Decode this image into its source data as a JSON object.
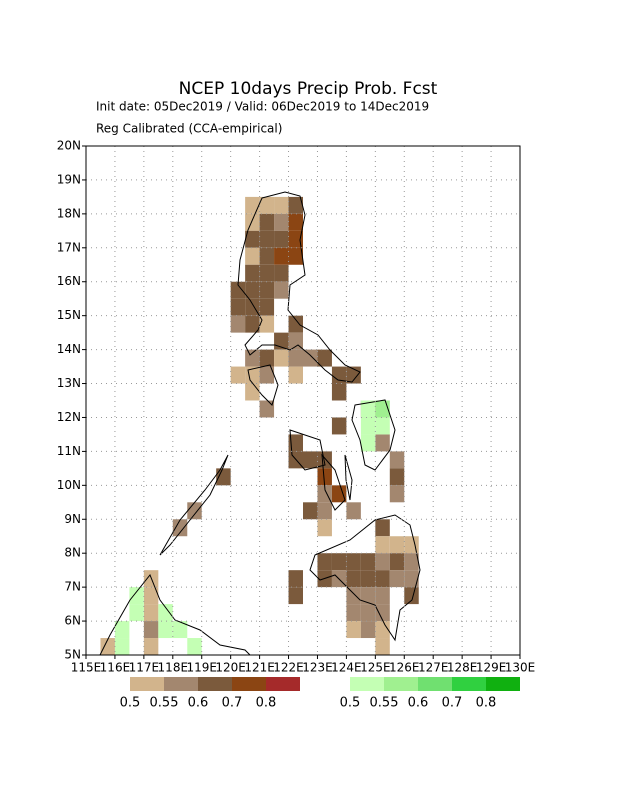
{
  "chart_data": {
    "type": "gridmap",
    "title": "NCEP 10days Precip Prob. Fcst",
    "subtitle": "Init date: 05Dec2019 / Valid: 06Dec2019 to 14Dec2019",
    "note": "Reg Calibrated (CCA-empirical)",
    "xlim": [
      115,
      130
    ],
    "ylim": [
      5,
      20
    ],
    "cell": 0.5,
    "grid": true,
    "xticks": [
      {
        "value": 115,
        "label": "115E"
      },
      {
        "value": 116,
        "label": "116E"
      },
      {
        "value": 117,
        "label": "117E"
      },
      {
        "value": 118,
        "label": "118E"
      },
      {
        "value": 119,
        "label": "119E"
      },
      {
        "value": 120,
        "label": "120E"
      },
      {
        "value": 121,
        "label": "121E"
      },
      {
        "value": 122,
        "label": "122E"
      },
      {
        "value": 123,
        "label": "123E"
      },
      {
        "value": 124,
        "label": "124E"
      },
      {
        "value": 125,
        "label": "125E"
      },
      {
        "value": 126,
        "label": "126E"
      },
      {
        "value": 127,
        "label": "127E"
      },
      {
        "value": 128,
        "label": "128E"
      },
      {
        "value": 129,
        "label": "129E"
      },
      {
        "value": 130,
        "label": "130E"
      }
    ],
    "yticks": [
      {
        "value": 5,
        "label": "5N"
      },
      {
        "value": 6,
        "label": "6N"
      },
      {
        "value": 7,
        "label": "7N"
      },
      {
        "value": 8,
        "label": "8N"
      },
      {
        "value": 9,
        "label": "9N"
      },
      {
        "value": 10,
        "label": "10N"
      },
      {
        "value": 11,
        "label": "11N"
      },
      {
        "value": 12,
        "label": "12N"
      },
      {
        "value": 13,
        "label": "13N"
      },
      {
        "value": 14,
        "label": "14N"
      },
      {
        "value": 15,
        "label": "15N"
      },
      {
        "value": 16,
        "label": "16N"
      },
      {
        "value": 17,
        "label": "17N"
      },
      {
        "value": 18,
        "label": "18N"
      },
      {
        "value": 19,
        "label": "19N"
      },
      {
        "value": 20,
        "label": "20N"
      }
    ],
    "levels": [
      0.5,
      0.55,
      0.6,
      0.7,
      0.8
    ],
    "colors_below": [
      "#d2b48c",
      "#a3876f",
      "#7b5a3c",
      "#8b4513",
      "#a52a2a"
    ],
    "colors_above": [
      "#c4ffb4",
      "#a0f090",
      "#70e070",
      "#30d040",
      "#10b010"
    ],
    "below": {
      "lon": [
        120.5,
        121,
        121.5,
        122,
        120.5,
        121,
        121.5,
        122,
        120.5,
        121,
        121.5,
        122,
        120.5,
        121,
        121.5,
        122,
        120.5,
        121,
        121.5,
        120,
        120.5,
        121,
        121.5,
        120,
        120.5,
        121,
        120,
        120.5,
        121,
        122,
        121.5,
        122,
        120.5,
        121,
        121.5,
        122,
        122.5,
        123,
        120,
        120.5,
        121,
        122,
        123.5,
        124,
        120.5,
        123.5,
        121,
        124.5,
        123.5,
        122,
        125,
        122,
        122.5,
        123,
        125.5,
        123,
        125.5,
        123.5,
        123,
        125.5,
        122.5,
        123,
        124,
        123,
        125,
        125,
        125.5,
        126,
        123,
        123.5,
        124,
        124.5,
        125,
        125.5,
        126,
        122,
        123,
        123.5,
        124,
        124.5,
        125,
        125.5,
        126,
        122,
        124,
        124.5,
        125,
        126,
        124,
        124.5,
        125,
        124,
        124.5,
        125,
        125,
        117,
        117,
        117,
        117,
        115.5,
        117,
        118.5,
        118,
        119.5
      ],
      "lat": [
        18,
        18,
        18,
        18,
        17.5,
        17.5,
        17.5,
        17.5,
        17,
        17,
        17,
        17,
        16.5,
        16.5,
        16.5,
        16.5,
        16,
        16,
        16,
        15.5,
        15.5,
        15.5,
        15.5,
        15,
        15,
        15,
        14.5,
        14.5,
        14.5,
        14.5,
        14,
        14,
        13.5,
        13.5,
        13.5,
        13.5,
        13.5,
        13.5,
        13,
        13,
        13,
        13,
        13,
        13,
        12.5,
        12.5,
        12,
        12,
        11.5,
        11,
        11,
        10.5,
        10.5,
        10.5,
        10.5,
        10,
        10,
        9.5,
        9.5,
        9.5,
        9,
        9,
        9,
        8.5,
        8.5,
        8,
        8,
        8,
        7.5,
        7.5,
        7.5,
        7.5,
        7.5,
        7.5,
        7.5,
        7,
        7,
        7,
        7,
        7,
        7,
        7,
        7,
        6.5,
        6.5,
        6.5,
        6.5,
        6.5,
        6,
        6,
        6,
        5.5,
        5.5,
        5.5,
        5,
        7,
        6.5,
        6,
        5.5,
        5,
        5,
        9,
        8.5,
        10
      ],
      "values": [
        0.5,
        0.5,
        0.5,
        0.6,
        0.5,
        0.6,
        0.55,
        0.7,
        0.6,
        0.6,
        0.6,
        0.7,
        0.5,
        0.6,
        0.7,
        0.7,
        0.6,
        0.6,
        0.6,
        0.6,
        0.6,
        0.6,
        0.55,
        0.6,
        0.6,
        0.6,
        0.55,
        0.6,
        0.5,
        0.6,
        0.6,
        0.55,
        0.55,
        0.6,
        0.5,
        0.55,
        0.55,
        0.6,
        0.5,
        0.5,
        0.55,
        0.5,
        0.6,
        0.6,
        0.5,
        0.6,
        0.55,
        0.55,
        0.6,
        0.6,
        0.55,
        0.6,
        0.6,
        0.6,
        0.55,
        0.7,
        0.6,
        0.7,
        0.55,
        0.55,
        0.6,
        0.55,
        0.55,
        0.5,
        0.6,
        0.5,
        0.5,
        0.5,
        0.6,
        0.6,
        0.6,
        0.6,
        0.55,
        0.6,
        0.55,
        0.6,
        0.6,
        0.55,
        0.6,
        0.6,
        0.6,
        0.55,
        0.55,
        0.6,
        0.55,
        0.55,
        0.55,
        0.6,
        0.55,
        0.55,
        0.55,
        0.5,
        0.55,
        0.5,
        0.5,
        0.5,
        0.5,
        0.5,
        0.55,
        0.5,
        0.5,
        0.55,
        0.55,
        0.6
      ]
    },
    "above": {
      "lon": [
        124.5,
        125,
        124.5,
        125,
        124.5,
        116.5,
        116.5,
        117.5,
        116,
        117.5,
        118,
        116,
        118.5
      ],
      "lat": [
        12,
        12,
        11.5,
        11.5,
        11,
        6.5,
        6,
        6,
        5.5,
        5.5,
        5.5,
        5,
        5
      ],
      "values": [
        0.5,
        0.55,
        0.5,
        0.5,
        0.5,
        0.5,
        0.5,
        0.5,
        0.5,
        0.5,
        0.5,
        0.5,
        0.5
      ]
    }
  }
}
